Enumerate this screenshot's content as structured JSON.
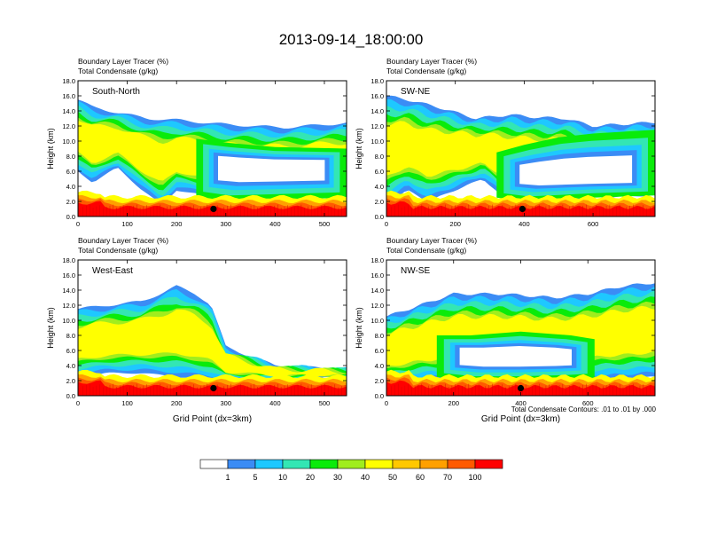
{
  "chart_data": {
    "type": "heatmap",
    "title": "2013-09-14_18:00:00",
    "footnote": "Total Condensate Contours: .01 to .01 by .000",
    "colorbar": {
      "colors": [
        "#ffffff",
        "#3b8cf5",
        "#1ec8ff",
        "#33e6b4",
        "#0aeb0a",
        "#a0ed1e",
        "#ffff00",
        "#ffc800",
        "#ffa000",
        "#ff5a00",
        "#ff0000"
      ],
      "labels": [
        "1",
        "5",
        "10",
        "20",
        "30",
        "40",
        "50",
        "60",
        "70",
        "100"
      ]
    },
    "panels": [
      {
        "id": "south-north",
        "label": "South-North",
        "header1": "Boundary Layer Tracer   (%)",
        "header2": "Total Condensate   (g/kg)",
        "ylabel": "Height (km)",
        "xlabel": "",
        "xlim": [
          0,
          545
        ],
        "ylim": [
          0,
          18
        ],
        "xticks": [
          "0",
          "100",
          "200",
          "300",
          "400",
          "500"
        ],
        "xtick_values": [
          0,
          100,
          200,
          300,
          400,
          500
        ],
        "yticks": [
          "0.0",
          "2.0",
          "4.0",
          "6.0",
          "8.0",
          "10.0",
          "12.0",
          "14.0",
          "16.0",
          "18.0"
        ],
        "marker_x": 275,
        "marker_y": 1.0,
        "cloud_upper": [
          [
            0,
            15.5
          ],
          [
            30,
            14.5
          ],
          [
            80,
            13.8
          ],
          [
            140,
            13.0
          ],
          [
            200,
            12.8
          ],
          [
            300,
            12.2
          ],
          [
            420,
            11.8
          ],
          [
            545,
            12.4
          ]
        ],
        "cloud_lower": [
          [
            0,
            6.0
          ],
          [
            30,
            4.5
          ],
          [
            80,
            6.5
          ],
          [
            130,
            3.5
          ],
          [
            170,
            1.5
          ],
          [
            200,
            3.5
          ],
          [
            240,
            3.0
          ],
          [
            300,
            2.0
          ],
          [
            420,
            2.2
          ],
          [
            545,
            2.6
          ]
        ],
        "cloud_hole_upper": [
          [
            240,
            10.3
          ],
          [
            300,
            9.8
          ],
          [
            400,
            9.2
          ],
          [
            545,
            9.0
          ]
        ],
        "cloud_hole_lower": [
          [
            240,
            2.6
          ],
          [
            300,
            2.0
          ],
          [
            400,
            2.2
          ],
          [
            545,
            2.5
          ]
        ]
      },
      {
        "id": "sw-ne",
        "label": "SW-NE",
        "header1": "Boundary Layer Tracer   (%)",
        "header2": "Total Condensate   (g/kg)",
        "ylabel": "Height (km)",
        "xlabel": "",
        "xlim": [
          0,
          780
        ],
        "ylim": [
          0,
          18
        ],
        "xticks": [
          "0",
          "200",
          "400",
          "600"
        ],
        "xtick_values": [
          0,
          200,
          400,
          600
        ],
        "yticks": [
          "0.0",
          "2.0",
          "4.0",
          "6.0",
          "8.0",
          "10.0",
          "12.0",
          "14.0",
          "16.0",
          "18.0"
        ],
        "marker_x": 395,
        "marker_y": 1.0,
        "cloud_upper": [
          [
            0,
            16.0
          ],
          [
            60,
            15.5
          ],
          [
            150,
            14.5
          ],
          [
            260,
            13.0
          ],
          [
            360,
            13.5
          ],
          [
            420,
            13.2
          ],
          [
            520,
            13.0
          ],
          [
            600,
            12.0
          ],
          [
            780,
            12.5
          ]
        ],
        "cloud_lower": [
          [
            0,
            1.5
          ],
          [
            60,
            3.5
          ],
          [
            120,
            2.0
          ],
          [
            200,
            3.5
          ],
          [
            280,
            5.0
          ],
          [
            340,
            2.5
          ],
          [
            420,
            2.0
          ],
          [
            600,
            2.5
          ],
          [
            780,
            2.8
          ]
        ],
        "cloud_hole_upper": [
          [
            320,
            8.5
          ],
          [
            400,
            9.5
          ],
          [
            500,
            10.5
          ],
          [
            600,
            11.0
          ],
          [
            780,
            11.5
          ]
        ],
        "cloud_hole_lower": [
          [
            320,
            2.5
          ],
          [
            400,
            2.0
          ],
          [
            600,
            2.5
          ],
          [
            780,
            2.8
          ]
        ]
      },
      {
        "id": "west-east",
        "label": "West-East",
        "header1": "Boundary Layer Tracer   (%)",
        "header2": "Total Condensate   (g/kg)",
        "ylabel": "Height (km)",
        "xlabel": "Grid Point (dx=3km)",
        "xlim": [
          0,
          545
        ],
        "ylim": [
          0,
          18
        ],
        "xticks": [
          "0",
          "100",
          "200",
          "300",
          "400",
          "500"
        ],
        "xtick_values": [
          0,
          100,
          200,
          300,
          400,
          500
        ],
        "yticks": [
          "0.0",
          "2.0",
          "4.0",
          "6.0",
          "8.0",
          "10.0",
          "12.0",
          "14.0",
          "16.0",
          "18.0"
        ],
        "marker_x": 275,
        "marker_y": 1.0,
        "cloud_upper": [
          [
            0,
            11.5
          ],
          [
            60,
            12.0
          ],
          [
            130,
            12.5
          ],
          [
            200,
            14.5
          ],
          [
            240,
            13.5
          ],
          [
            270,
            12.0
          ],
          [
            300,
            6.5
          ],
          [
            400,
            4.0
          ],
          [
            545,
            3.5
          ]
        ],
        "cloud_lower": [
          [
            0,
            2.5
          ],
          [
            60,
            3.0
          ],
          [
            130,
            3.0
          ],
          [
            200,
            2.5
          ],
          [
            300,
            2.0
          ],
          [
            400,
            2.2
          ],
          [
            545,
            2.5
          ]
        ],
        "cloud_hole_upper": [],
        "cloud_hole_lower": []
      },
      {
        "id": "nw-se",
        "label": "NW-SE",
        "header1": "Boundary Layer Tracer   (%)",
        "header2": "Total Condensate   (g/kg)",
        "ylabel": "Height (km)",
        "xlabel": "Grid Point (dx=3km)",
        "xlim": [
          0,
          800
        ],
        "ylim": [
          0,
          18
        ],
        "xticks": [
          "0",
          "200",
          "400",
          "600"
        ],
        "xtick_values": [
          0,
          200,
          400,
          600
        ],
        "yticks": [
          "0.0",
          "2.0",
          "4.0",
          "6.0",
          "8.0",
          "10.0",
          "12.0",
          "14.0",
          "16.0",
          "18.0"
        ],
        "marker_x": 400,
        "marker_y": 1.0,
        "cloud_upper": [
          [
            0,
            10.5
          ],
          [
            100,
            12.0
          ],
          [
            200,
            13.5
          ],
          [
            350,
            13.5
          ],
          [
            500,
            13.0
          ],
          [
            600,
            13.5
          ],
          [
            700,
            14.5
          ],
          [
            800,
            15.0
          ]
        ],
        "cloud_lower": [
          [
            0,
            1.5
          ],
          [
            100,
            2.0
          ],
          [
            200,
            2.0
          ],
          [
            300,
            2.0
          ],
          [
            500,
            2.0
          ],
          [
            700,
            2.2
          ],
          [
            800,
            2.5
          ]
        ],
        "cloud_hole_upper": [
          [
            150,
            8.0
          ],
          [
            250,
            8.0
          ],
          [
            400,
            8.5
          ],
          [
            550,
            8.0
          ],
          [
            620,
            7.5
          ]
        ],
        "cloud_hole_lower": [
          [
            150,
            2.5
          ],
          [
            250,
            2.0
          ],
          [
            400,
            2.0
          ],
          [
            550,
            2.2
          ],
          [
            620,
            2.4
          ]
        ]
      }
    ]
  }
}
